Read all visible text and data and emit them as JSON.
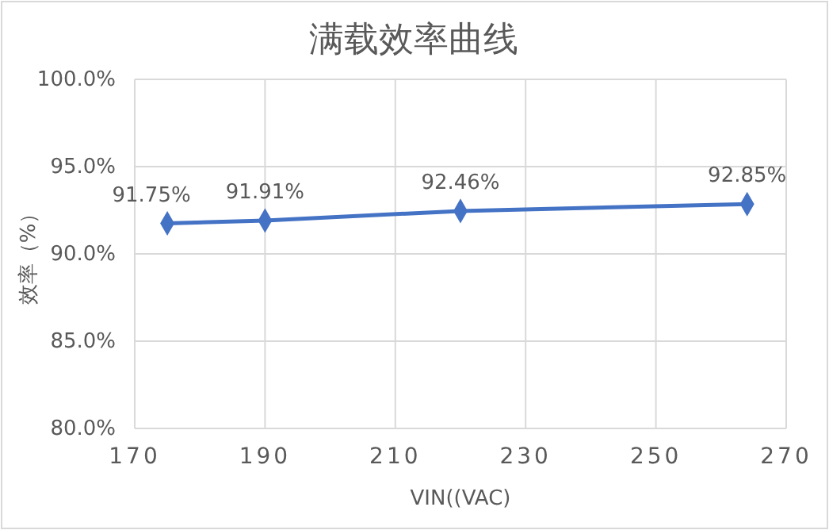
{
  "chart_data": {
    "type": "line",
    "title": "满载效率曲线",
    "xlabel": "VIN((VAC)",
    "ylabel": "效率（%）",
    "x": [
      175,
      190,
      220,
      264
    ],
    "series": [
      {
        "color": "#4472c4",
        "values": [
          91.75,
          91.91,
          92.46,
          92.85
        ]
      }
    ],
    "value_labels": [
      "91.75%",
      "91.91%",
      "92.46%",
      "92.85%"
    ],
    "xlim": [
      170,
      270
    ],
    "xticks": [
      170,
      190,
      210,
      230,
      250,
      270
    ],
    "ylim": [
      80,
      100
    ],
    "yticks": [
      {
        "value": 80,
        "label": "80.0%"
      },
      {
        "value": 85,
        "label": "85.0%"
      },
      {
        "value": 90,
        "label": "90.0%"
      },
      {
        "value": 95,
        "label": "95.0%"
      },
      {
        "value": 100,
        "label": "100.0%"
      }
    ],
    "grid": true,
    "marker": "diamond",
    "line_style": "solid"
  }
}
